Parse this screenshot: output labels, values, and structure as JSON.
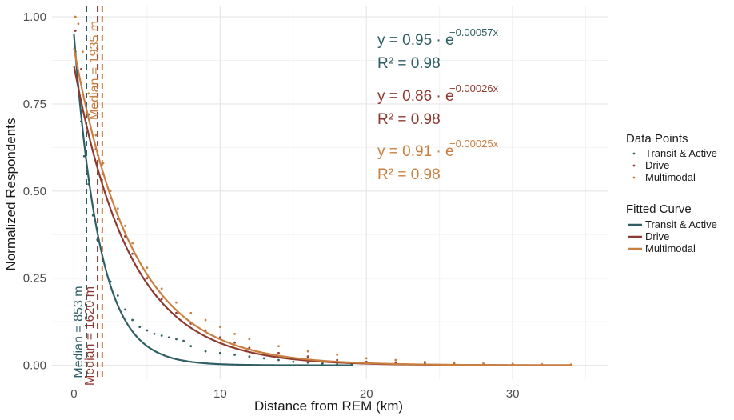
{
  "chart_data": {
    "type": "scatter",
    "xlabel": "Distance from REM (km)",
    "ylabel": "Normalized Respondents",
    "xlim": [
      -1.5,
      36.5
    ],
    "ylim": [
      -0.04,
      1.03
    ],
    "x_ticks": [
      0,
      10,
      20,
      30
    ],
    "y_ticks": [
      0.0,
      0.25,
      0.5,
      0.75,
      1.0
    ],
    "x_tick_labels": [
      "0",
      "10",
      "20",
      "30"
    ],
    "y_tick_labels": [
      "0.00",
      "0.25",
      "0.50",
      "0.75",
      "1.00"
    ],
    "grid": true,
    "legend_position": "right",
    "series": [
      {
        "name": "Transit & Active",
        "color": "#2f5f64",
        "fit": {
          "a": 0.95,
          "b": 0.00057
        },
        "equation": "y = 0.95 · e",
        "exponent": "−0.00057x",
        "r2": "R² = 0.98",
        "median_m": 853,
        "median_label": "Median = 853 m",
        "x_max_km": 19,
        "points": [
          [
            0.1,
            0.9
          ],
          [
            0.3,
            0.8
          ],
          [
            0.5,
            0.7
          ],
          [
            0.7,
            0.6
          ],
          [
            1.0,
            0.52
          ],
          [
            1.3,
            0.43
          ],
          [
            1.6,
            0.36
          ],
          [
            2.0,
            0.3
          ],
          [
            2.5,
            0.24
          ],
          [
            3.0,
            0.2
          ],
          [
            3.5,
            0.16
          ],
          [
            4.0,
            0.13
          ],
          [
            4.5,
            0.11
          ],
          [
            5.0,
            0.1
          ],
          [
            5.5,
            0.09
          ],
          [
            6.0,
            0.085
          ],
          [
            6.5,
            0.08
          ],
          [
            7.0,
            0.075
          ],
          [
            7.5,
            0.07
          ],
          [
            8.0,
            0.055
          ],
          [
            9.0,
            0.04
          ],
          [
            10.0,
            0.035
          ],
          [
            11.0,
            0.03
          ],
          [
            12.0,
            0.025
          ],
          [
            13.0,
            0.02
          ],
          [
            14.0,
            0.015
          ],
          [
            15.0,
            0.01
          ],
          [
            16.0,
            0.008
          ],
          [
            17.0,
            0.005
          ],
          [
            18.0,
            0.003
          ],
          [
            19.0,
            0.002
          ]
        ]
      },
      {
        "name": "Drive",
        "color": "#8f3a30",
        "fit": {
          "a": 0.86,
          "b": 0.00026
        },
        "equation": "y = 0.86 · e",
        "exponent": "−0.00026x",
        "r2": "R² = 0.98",
        "median_m": 1620,
        "median_label": "Median = 1620 m",
        "x_max_km": 34,
        "points": [
          [
            0.1,
            0.96
          ],
          [
            0.5,
            0.85
          ],
          [
            1.0,
            0.72
          ],
          [
            1.5,
            0.62
          ],
          [
            2.0,
            0.55
          ],
          [
            2.5,
            0.48
          ],
          [
            3.0,
            0.42
          ],
          [
            3.5,
            0.37
          ],
          [
            4.0,
            0.32
          ],
          [
            5.0,
            0.25
          ],
          [
            6.0,
            0.19
          ],
          [
            7.0,
            0.15
          ],
          [
            8.0,
            0.12
          ],
          [
            9.0,
            0.1
          ],
          [
            10.0,
            0.08
          ],
          [
            11.0,
            0.065
          ],
          [
            12.0,
            0.05
          ],
          [
            14.0,
            0.035
          ],
          [
            16.0,
            0.025
          ],
          [
            18.0,
            0.015
          ],
          [
            20.0,
            0.01
          ],
          [
            22.0,
            0.008
          ],
          [
            24.0,
            0.006
          ],
          [
            26.0,
            0.004
          ],
          [
            28.0,
            0.003
          ],
          [
            30.0,
            0.002
          ],
          [
            32.0,
            0.001
          ],
          [
            34.0,
            0.001
          ]
        ]
      },
      {
        "name": "Multimodal",
        "color": "#c97f40",
        "fit": {
          "a": 0.91,
          "b": 0.00025
        },
        "equation": "y = 0.91 · e",
        "exponent": "−0.00025x",
        "r2": "R² = 0.98",
        "median_m": 1935,
        "median_label": "Median = 1935 m",
        "x_max_km": 34,
        "points": [
          [
            0.1,
            1.0
          ],
          [
            0.3,
            0.98
          ],
          [
            0.6,
            0.9
          ],
          [
            1.0,
            0.78
          ],
          [
            1.5,
            0.66
          ],
          [
            2.0,
            0.58
          ],
          [
            2.5,
            0.5
          ],
          [
            3.0,
            0.45
          ],
          [
            3.5,
            0.4
          ],
          [
            4.0,
            0.35
          ],
          [
            5.0,
            0.28
          ],
          [
            6.0,
            0.22
          ],
          [
            7.0,
            0.18
          ],
          [
            8.0,
            0.15
          ],
          [
            9.0,
            0.13
          ],
          [
            10.0,
            0.11
          ],
          [
            11.0,
            0.09
          ],
          [
            12.0,
            0.075
          ],
          [
            14.0,
            0.055
          ],
          [
            16.0,
            0.04
          ],
          [
            18.0,
            0.03
          ],
          [
            20.0,
            0.02
          ],
          [
            22.0,
            0.015
          ],
          [
            24.0,
            0.01
          ],
          [
            26.0,
            0.008
          ],
          [
            28.0,
            0.005
          ],
          [
            30.0,
            0.004
          ],
          [
            32.0,
            0.003
          ],
          [
            34.0,
            0.002
          ]
        ]
      }
    ],
    "legend": {
      "points_title": "Data Points",
      "fit_title": "Fitted Curve"
    }
  }
}
